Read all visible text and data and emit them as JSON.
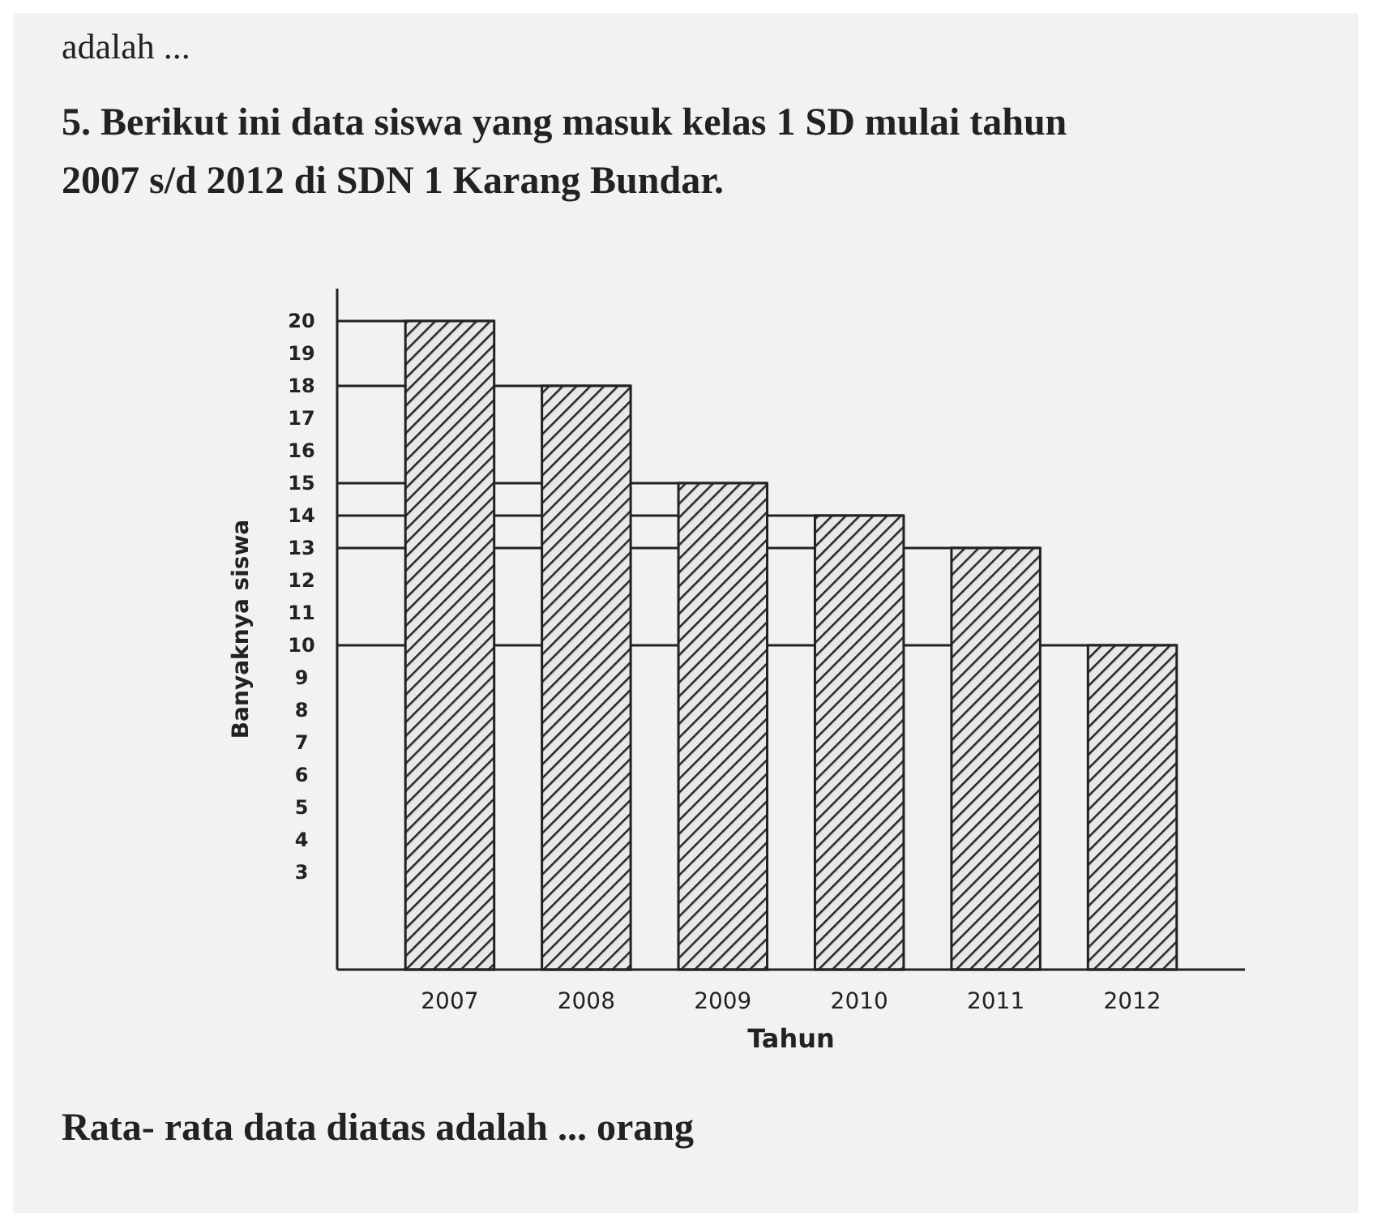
{
  "chart_data": {
    "type": "bar",
    "title": "5. Berikut ini data siswa yang masuk kelas 1 SD mulai tahun 2007 s/d 2012 di SDN 1 Karang Bundar.",
    "xlabel": "Tahun",
    "ylabel": "Banyaknya siswa",
    "categories": [
      "2007",
      "2008",
      "2009",
      "2010",
      "2011",
      "2012"
    ],
    "values": [
      20,
      18,
      15,
      14,
      13,
      10
    ],
    "color": "#222222",
    "ref_lines": [
      {
        "axis": "y",
        "value": 20
      },
      {
        "axis": "y",
        "value": 18
      },
      {
        "axis": "y",
        "value": 15
      },
      {
        "axis": "y",
        "value": 14
      },
      {
        "axis": "y",
        "value": 13
      },
      {
        "axis": "y",
        "value": 10
      }
    ],
    "ylim": [
      0,
      21
    ],
    "yticks": [
      3,
      4,
      5,
      6,
      7,
      8,
      9,
      10,
      11,
      12,
      13,
      14,
      15,
      16,
      17,
      18,
      19,
      20
    ],
    "grid": false,
    "annotations": [
      "adalah ...",
      "Rata- rata data diatas adalah ... orang"
    ]
  }
}
